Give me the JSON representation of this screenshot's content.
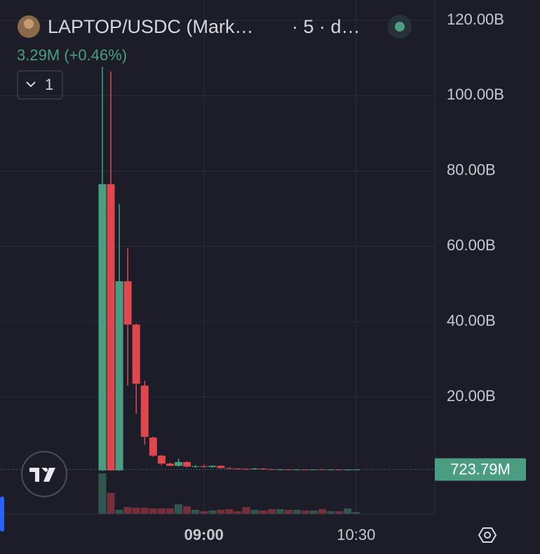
{
  "header": {
    "symbol": "LAPTOP/USDC (Mark…",
    "interval": "· 5 · d…",
    "change": "3.29M (+0.46%)",
    "indicator_count": "1"
  },
  "chart_data": {
    "type": "candlestick",
    "categories": [
      null,
      null,
      null,
      null,
      null,
      null,
      null,
      null,
      null,
      null,
      null,
      null,
      "09:00",
      null,
      null,
      null,
      null,
      null,
      null,
      null,
      null,
      null,
      null,
      null,
      null,
      null,
      null,
      null,
      null,
      null,
      "10:30"
    ],
    "open": [
      0.5,
      76.5,
      0.5,
      50.7,
      39.2,
      23.0,
      9.2,
      4.4,
      2.3,
      1.7,
      2.7,
      1.5,
      1.6,
      1.4,
      1.7,
      1.1,
      1.0,
      0.9,
      0.8,
      1.0,
      0.8,
      0.7,
      0.75,
      0.7,
      0.72,
      0.7,
      0.74,
      0.71,
      0.73,
      0.7,
      0.71
    ],
    "high": [
      107.7,
      106.4,
      71.2,
      59.5,
      39.5,
      24.3,
      9.5,
      4.6,
      2.6,
      3.6,
      2.9,
      1.9,
      2.0,
      1.8,
      1.8,
      1.3,
      1.1,
      1.0,
      1.1,
      1.1,
      0.9,
      0.85,
      0.85,
      0.8,
      0.8,
      0.8,
      0.8,
      0.8,
      0.8,
      0.78,
      0.76
    ],
    "low": [
      0.3,
      0.4,
      0.4,
      23.0,
      15.5,
      7.3,
      4.1,
      1.8,
      1.6,
      1.5,
      1.3,
      1.2,
      1.3,
      1.2,
      1.0,
      0.9,
      0.8,
      0.7,
      0.7,
      0.7,
      0.6,
      0.6,
      0.62,
      0.62,
      0.63,
      0.64,
      0.65,
      0.66,
      0.66,
      0.67,
      0.68
    ],
    "close": [
      76.5,
      0.5,
      50.7,
      39.2,
      23.5,
      9.4,
      4.4,
      2.3,
      1.7,
      2.7,
      1.5,
      1.6,
      1.4,
      1.7,
      1.1,
      1.0,
      0.9,
      0.8,
      1.0,
      0.8,
      0.7,
      0.75,
      0.7,
      0.72,
      0.7,
      0.74,
      0.71,
      0.73,
      0.7,
      0.71,
      0.72379
    ],
    "volume": [
      58,
      30,
      6,
      10,
      9,
      9,
      8,
      8,
      8,
      14,
      11,
      6,
      4,
      5,
      6,
      7,
      4,
      10,
      6,
      5,
      7,
      7,
      6,
      6,
      5,
      5,
      7,
      4,
      4,
      8,
      3
    ],
    "up_color": "#4b9d82",
    "down_color": "#e0474c",
    "ylim": [
      -11.1,
      125.4
    ],
    "yticks": [
      {
        "value": 20,
        "label": "20.00B"
      },
      {
        "value": 40,
        "label": "40.00B"
      },
      {
        "value": 60,
        "label": "60.00B"
      },
      {
        "value": 80,
        "label": "80.00B"
      },
      {
        "value": 100,
        "label": "100.00B"
      },
      {
        "value": 120,
        "label": "120.00B"
      }
    ],
    "last_price": {
      "value": 0.72379,
      "label": "723.79M"
    },
    "grid": true
  }
}
